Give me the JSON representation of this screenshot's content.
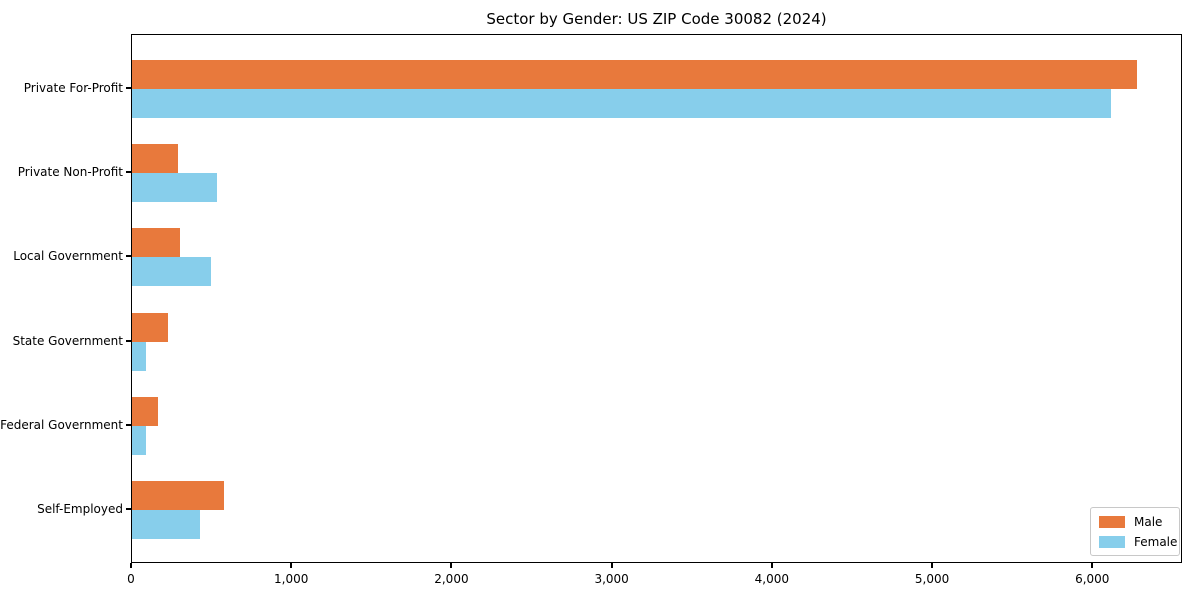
{
  "chart_data": {
    "type": "bar",
    "orientation": "horizontal",
    "title": "Sector by Gender: US ZIP Code 30082 (2024)",
    "categories": [
      "Private For-Profit",
      "Private Non-Profit",
      "Local Government",
      "State Government",
      "Federal Government",
      "Self-Employed"
    ],
    "series": [
      {
        "name": "Male",
        "color": "#E8793C",
        "values": [
          6270,
          285,
          300,
          225,
          160,
          575
        ]
      },
      {
        "name": "Female",
        "color": "#87CEEB",
        "values": [
          6110,
          530,
          490,
          85,
          90,
          425
        ]
      }
    ],
    "xlim": [
      0,
      6560
    ],
    "xticks": [
      0,
      1000,
      2000,
      3000,
      4000,
      5000,
      6000
    ],
    "xtick_labels": [
      "0",
      "1,000",
      "2,000",
      "3,000",
      "4,000",
      "5,000",
      "6,000"
    ],
    "ylabel": "",
    "xlabel": "",
    "grid": false,
    "legend_position": "lower right",
    "background_color": "#ffffff",
    "axis_color": "#000000"
  }
}
